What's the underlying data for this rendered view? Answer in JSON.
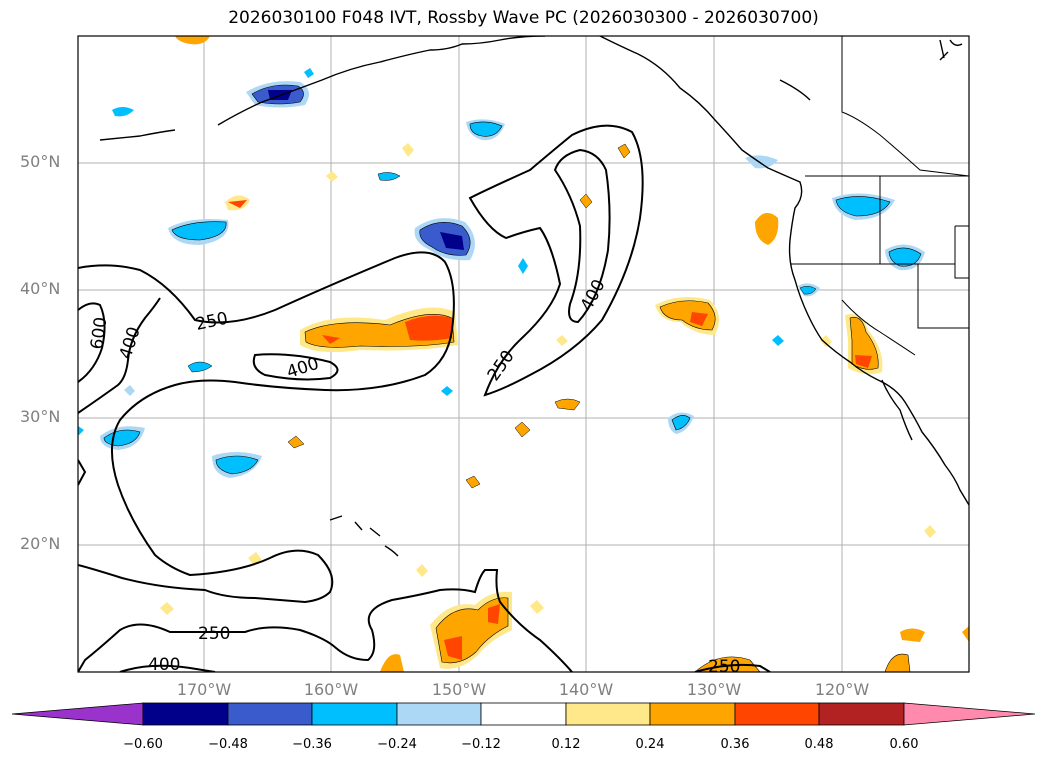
{
  "title": "2026030100 F048 IVT, Rossby Wave PC (2026030300 - 2026030700)",
  "axes": {
    "lat_ticks": [
      "50°N",
      "40°N",
      "30°N",
      "20°N"
    ],
    "lon_ticks": [
      "170°W",
      "160°W",
      "150°W",
      "140°W",
      "130°W",
      "120°W"
    ]
  },
  "ivt_contours": {
    "levels": [
      "250",
      "400",
      "600"
    ],
    "labels": [
      "250",
      "400",
      "600",
      "400",
      "250",
      "400",
      "250",
      "400",
      "250",
      "400",
      "250"
    ]
  },
  "colorbar": {
    "ticks": [
      "−0.60",
      "−0.48",
      "−0.36",
      "−0.24",
      "−0.12",
      "0.12",
      "0.24",
      "0.36",
      "0.48",
      "0.60"
    ],
    "colors": [
      "#9933cc",
      "#00008b",
      "#3a5bcc",
      "#00bfff",
      "#add8f5",
      "#ffffff",
      "#ffe88a",
      "#ffa500",
      "#ff4500",
      "#b22222",
      "#ff8aad"
    ]
  }
}
